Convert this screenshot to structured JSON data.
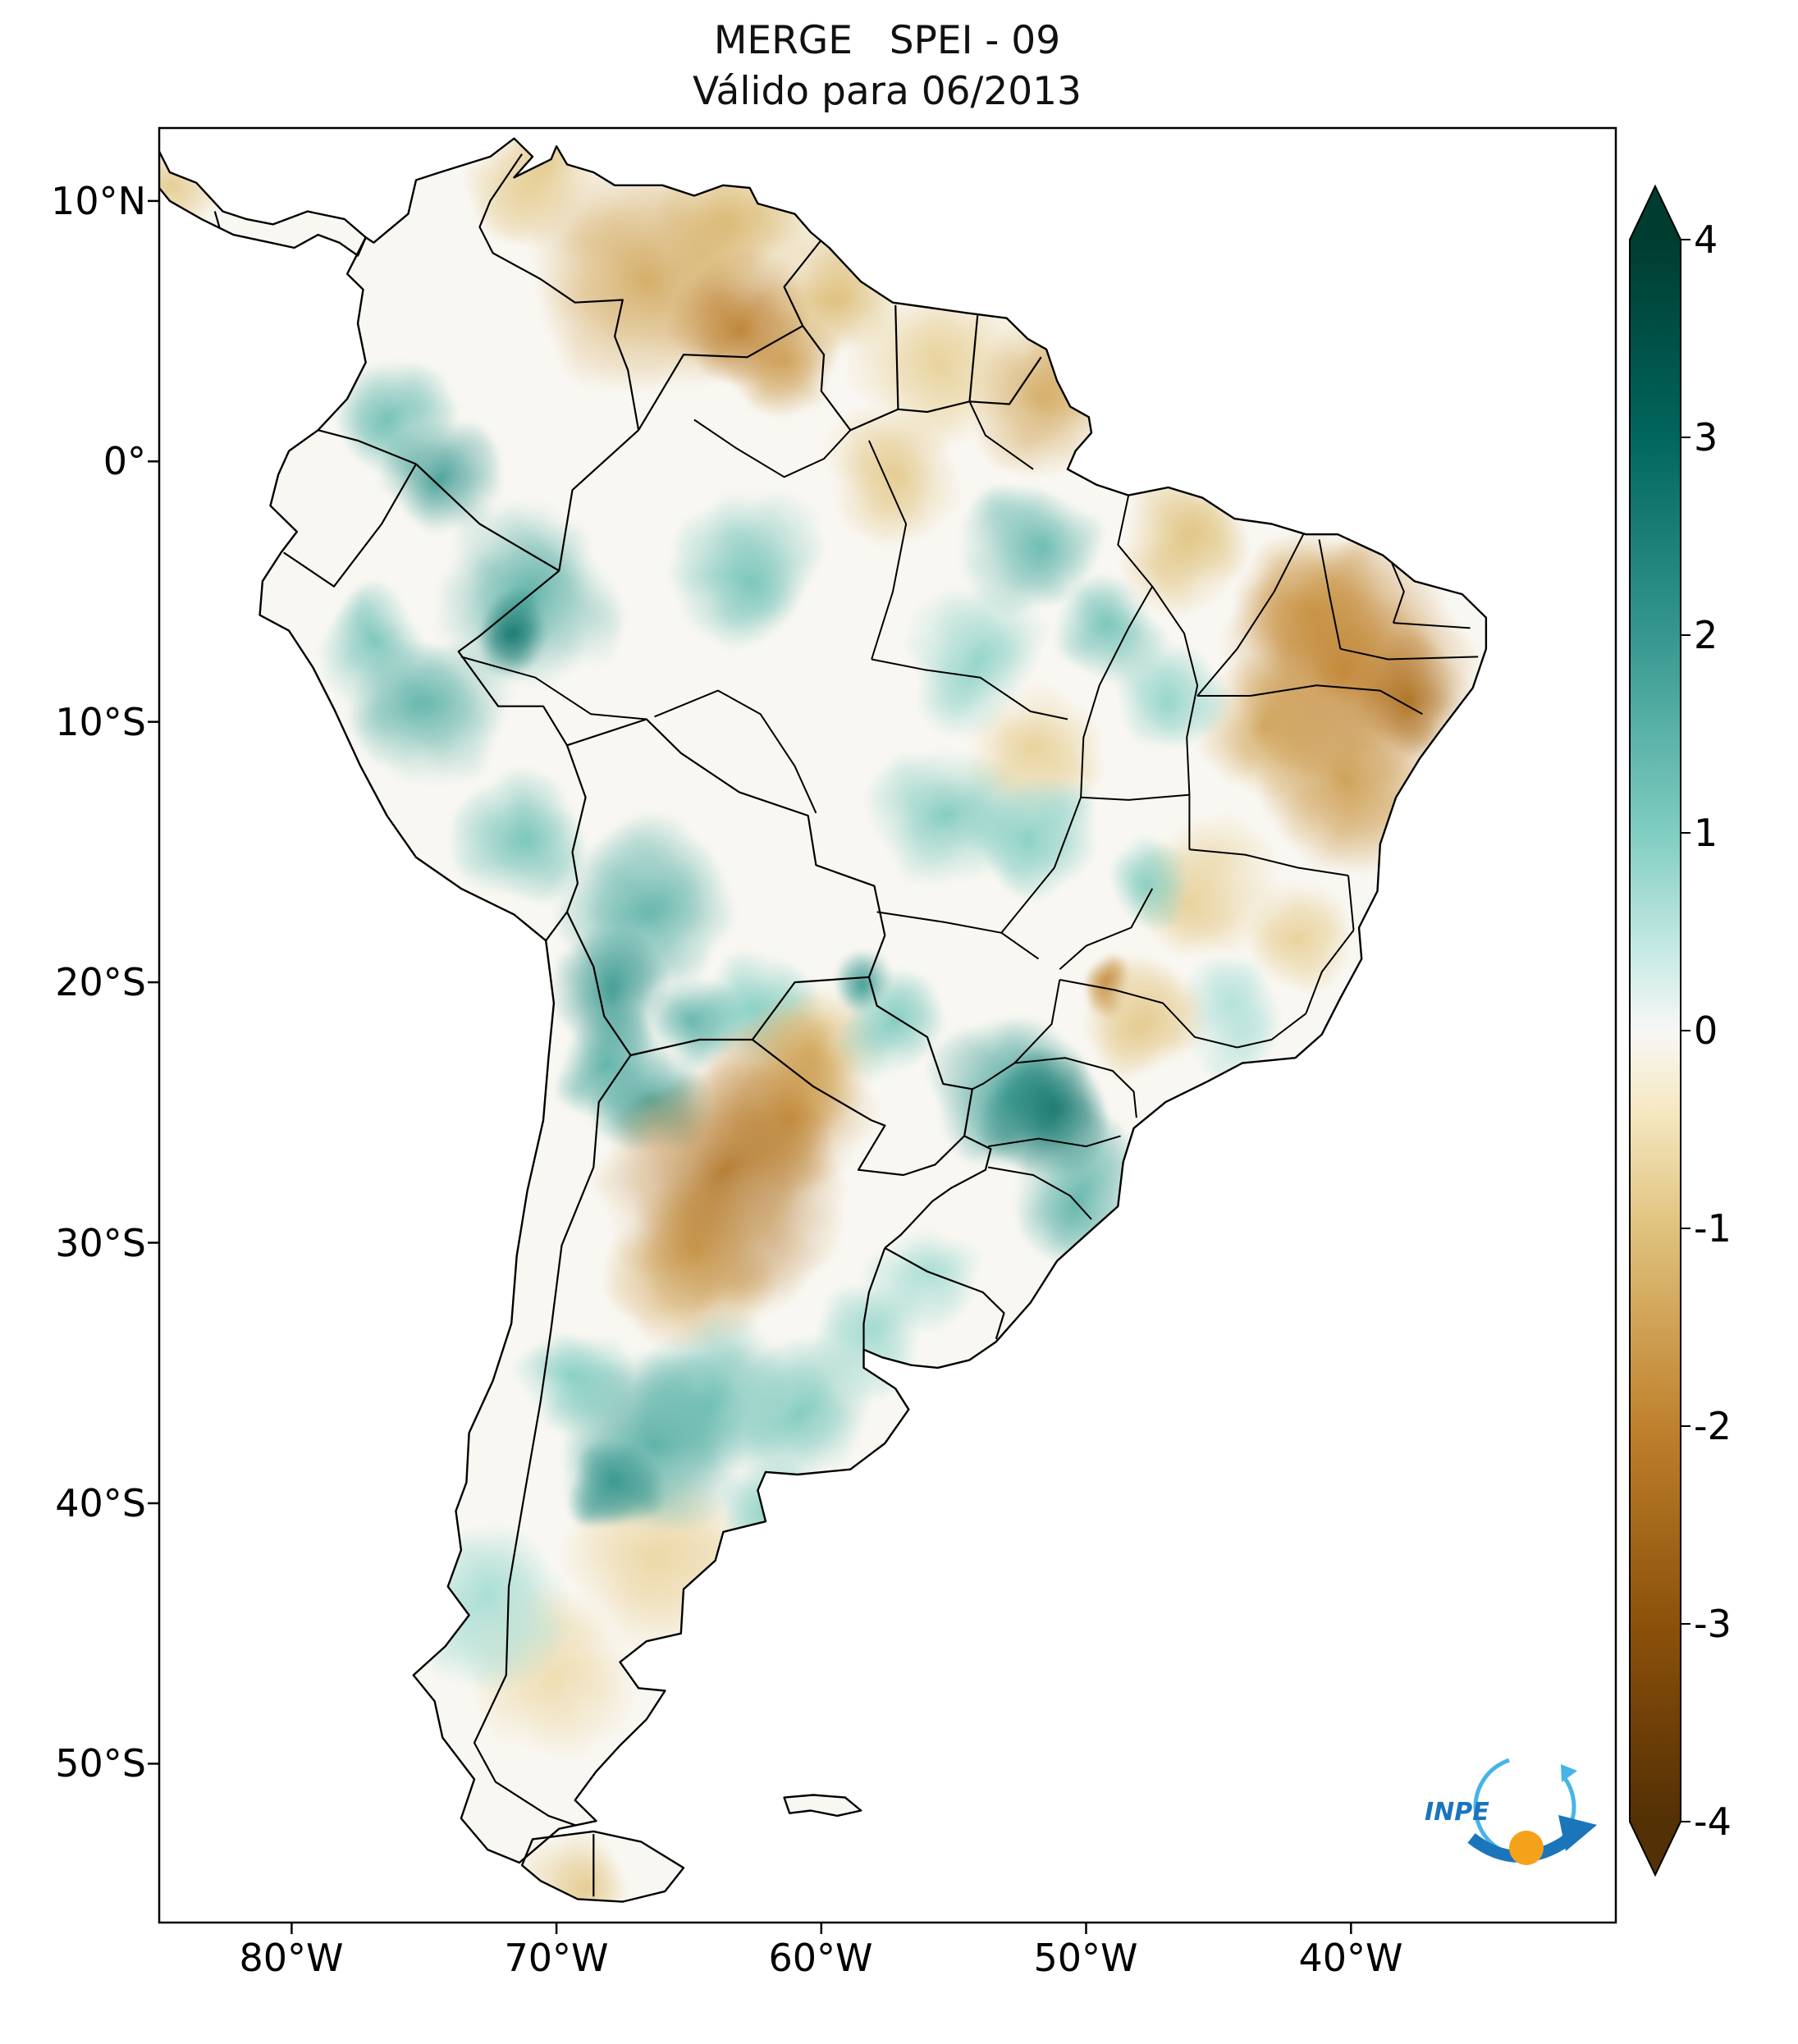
{
  "header": {
    "title_line1": "MERGE   SPEI - 09",
    "title_line2": "Válido para 06/2013"
  },
  "axes": {
    "y_ticks": [
      "10°N",
      "0°",
      "10°S",
      "20°S",
      "30°S",
      "40°S",
      "50°S"
    ],
    "x_ticks": [
      "80°W",
      "70°W",
      "60°W",
      "50°W",
      "40°W"
    ]
  },
  "colorbar": {
    "tick_labels": [
      "4",
      "3",
      "2",
      "1",
      "0",
      "-1",
      "-2",
      "-3",
      "-4"
    ],
    "max": 4,
    "min": -4,
    "colormap_name": "brown-white-teal (BrBG)",
    "stops": [
      [
        -4,
        "#543005"
      ],
      [
        -3,
        "#8c510a"
      ],
      [
        -2,
        "#bf812d"
      ],
      [
        -1,
        "#dfc27d"
      ],
      [
        -0.4,
        "#f6e8c3"
      ],
      [
        0,
        "#f7f7f5"
      ],
      [
        0.4,
        "#c7eae5"
      ],
      [
        1,
        "#80cdc1"
      ],
      [
        2,
        "#35978f"
      ],
      [
        3,
        "#01665e"
      ],
      [
        4,
        "#003c30"
      ]
    ]
  },
  "logo": {
    "text": "INPE",
    "blue": "#1b75bb",
    "light_blue": "#45b5e8",
    "orange": "#f5a21b"
  },
  "chart_data": {
    "type": "heatmap",
    "title": "MERGE   SPEI - 09",
    "subtitle": "Válido para 06/2013",
    "region": "South America",
    "index_range": [
      -4,
      4
    ],
    "colorbar_ticks": [
      4,
      3,
      2,
      1,
      0,
      -1,
      -2,
      -3,
      -4
    ],
    "lon_ticks": [
      "80°W",
      "70°W",
      "60°W",
      "50°W",
      "40°W"
    ],
    "lat_ticks": [
      "10°N",
      "0°",
      "10°S",
      "20°S",
      "30°S",
      "40°S",
      "50°S"
    ],
    "lon_range_est": [
      -85,
      -30
    ],
    "lat_range_est": [
      -56,
      13
    ],
    "anomalies": [
      {
        "lon": -66.5,
        "lat": 7.2,
        "value": -1.4,
        "radius_deg": 3.0
      },
      {
        "lon": -63.5,
        "lat": 9.3,
        "value": -1.1,
        "radius_deg": 1.8
      },
      {
        "lon": -70.8,
        "lat": 10.8,
        "value": -0.9,
        "radius_deg": 1.5
      },
      {
        "lon": -63.0,
        "lat": 5.6,
        "value": -2.1,
        "radius_deg": 1.7
      },
      {
        "lon": -61.3,
        "lat": 3.6,
        "value": -1.6,
        "radius_deg": 1.5
      },
      {
        "lon": -59.6,
        "lat": 6.6,
        "value": -1.1,
        "radius_deg": 1.8
      },
      {
        "lon": -51.5,
        "lat": 2.8,
        "value": -1.4,
        "radius_deg": 1.8
      },
      {
        "lon": -55.6,
        "lat": 3.8,
        "value": -0.8,
        "radius_deg": 2.0
      },
      {
        "lon": -57.5,
        "lat": -0.6,
        "value": -0.9,
        "radius_deg": 1.8
      },
      {
        "lon": -46.5,
        "lat": -3.2,
        "value": -1.0,
        "radius_deg": 1.6
      },
      {
        "lon": -41.5,
        "lat": -5.5,
        "value": -1.5,
        "radius_deg": 2.0
      },
      {
        "lon": -40.0,
        "lat": -7.6,
        "value": -2.0,
        "radius_deg": 3.2
      },
      {
        "lon": -37.6,
        "lat": -8.8,
        "value": -2.4,
        "radius_deg": 1.5
      },
      {
        "lon": -40.2,
        "lat": -12.5,
        "value": -1.6,
        "radius_deg": 2.2
      },
      {
        "lon": -43.2,
        "lat": -10.2,
        "value": -1.4,
        "radius_deg": 1.8
      },
      {
        "lon": -45.6,
        "lat": -16.4,
        "value": -0.8,
        "radius_deg": 1.8
      },
      {
        "lon": -49.4,
        "lat": -20.3,
        "value": -1.9,
        "radius_deg": 0.7
      },
      {
        "lon": -63.5,
        "lat": -27.8,
        "value": -2.3,
        "radius_deg": 3.2
      },
      {
        "lon": -61.3,
        "lat": -24.8,
        "value": -1.8,
        "radius_deg": 2.3
      },
      {
        "lon": -65.0,
        "lat": -30.8,
        "value": -1.5,
        "radius_deg": 2.0
      },
      {
        "lon": -60.3,
        "lat": -22.8,
        "value": -1.1,
        "radius_deg": 1.8
      },
      {
        "lon": -66.0,
        "lat": -42.3,
        "value": -0.7,
        "radius_deg": 2.3
      },
      {
        "lon": -70.3,
        "lat": -46.8,
        "value": -0.6,
        "radius_deg": 2.0
      },
      {
        "lon": -69.3,
        "lat": -54.3,
        "value": -0.9,
        "radius_deg": 1.4
      },
      {
        "lon": -84.0,
        "lat": 10.4,
        "value": -0.9,
        "radius_deg": 1.1
      },
      {
        "lon": -62.0,
        "lat": -43.5,
        "value": -0.6,
        "radius_deg": 1.6
      },
      {
        "lon": -41.8,
        "lat": -18.2,
        "value": -0.8,
        "radius_deg": 1.4
      },
      {
        "lon": -48.0,
        "lat": -21.5,
        "value": -0.9,
        "radius_deg": 1.5
      },
      {
        "lon": -52.0,
        "lat": -11.5,
        "value": -0.8,
        "radius_deg": 1.5
      },
      {
        "lon": -71.6,
        "lat": -6.6,
        "value": 2.7,
        "radius_deg": 1.1
      },
      {
        "lon": -71.0,
        "lat": -5.2,
        "value": 1.6,
        "radius_deg": 2.4
      },
      {
        "lon": -74.2,
        "lat": -0.6,
        "value": 1.9,
        "radius_deg": 1.5
      },
      {
        "lon": -76.0,
        "lat": 1.8,
        "value": 1.3,
        "radius_deg": 1.4
      },
      {
        "lon": -74.8,
        "lat": -9.6,
        "value": 1.5,
        "radius_deg": 1.9
      },
      {
        "lon": -77.0,
        "lat": -7.0,
        "value": 1.2,
        "radius_deg": 1.4
      },
      {
        "lon": -71.2,
        "lat": -14.2,
        "value": 1.2,
        "radius_deg": 1.7
      },
      {
        "lon": -66.8,
        "lat": -17.2,
        "value": 1.5,
        "radius_deg": 2.1
      },
      {
        "lon": -68.0,
        "lat": -20.2,
        "value": 2.0,
        "radius_deg": 1.5
      },
      {
        "lon": -68.0,
        "lat": -22.7,
        "value": 1.6,
        "radius_deg": 1.3
      },
      {
        "lon": -66.5,
        "lat": -24.6,
        "value": 1.8,
        "radius_deg": 1.4
      },
      {
        "lon": -64.6,
        "lat": -21.4,
        "value": 1.5,
        "radius_deg": 1.2
      },
      {
        "lon": -62.5,
        "lat": -21.0,
        "value": 1.0,
        "radius_deg": 1.4
      },
      {
        "lon": -58.6,
        "lat": -19.6,
        "value": 2.0,
        "radius_deg": 0.9
      },
      {
        "lon": -57.2,
        "lat": -21.6,
        "value": 1.1,
        "radius_deg": 1.4
      },
      {
        "lon": -51.7,
        "lat": -25.2,
        "value": 2.7,
        "radius_deg": 1.5
      },
      {
        "lon": -53.0,
        "lat": -24.3,
        "value": 1.8,
        "radius_deg": 1.9
      },
      {
        "lon": -50.2,
        "lat": -27.9,
        "value": 1.5,
        "radius_deg": 1.7
      },
      {
        "lon": -55.2,
        "lat": -13.6,
        "value": 1.1,
        "radius_deg": 1.9
      },
      {
        "lon": -52.2,
        "lat": -14.6,
        "value": 1.0,
        "radius_deg": 1.4
      },
      {
        "lon": -47.6,
        "lat": -16.1,
        "value": 1.0,
        "radius_deg": 1.2
      },
      {
        "lon": -62.8,
        "lat": -4.2,
        "value": 1.2,
        "radius_deg": 1.9
      },
      {
        "lon": -52.3,
        "lat": -3.2,
        "value": 1.4,
        "radius_deg": 1.8
      },
      {
        "lon": -49.2,
        "lat": -6.6,
        "value": 1.2,
        "radius_deg": 1.4
      },
      {
        "lon": -54.2,
        "lat": -7.6,
        "value": 0.9,
        "radius_deg": 1.8
      },
      {
        "lon": -47.0,
        "lat": -9.0,
        "value": 0.9,
        "radius_deg": 1.3
      },
      {
        "lon": -66.2,
        "lat": -37.5,
        "value": 1.6,
        "radius_deg": 2.4
      },
      {
        "lon": -67.6,
        "lat": -39.2,
        "value": 2.1,
        "radius_deg": 1.1
      },
      {
        "lon": -64.2,
        "lat": -35.6,
        "value": 1.2,
        "radius_deg": 1.9
      },
      {
        "lon": -61.9,
        "lat": -40.4,
        "value": 1.0,
        "radius_deg": 1.3
      },
      {
        "lon": -60.8,
        "lat": -36.6,
        "value": 1.1,
        "radius_deg": 1.8
      },
      {
        "lon": -69.2,
        "lat": -35.2,
        "value": 1.0,
        "radius_deg": 1.4
      },
      {
        "lon": -58.2,
        "lat": -33.9,
        "value": 0.8,
        "radius_deg": 1.4
      },
      {
        "lon": -56.2,
        "lat": -31.6,
        "value": 0.7,
        "radius_deg": 1.4
      },
      {
        "lon": -72.5,
        "lat": -44.0,
        "value": 0.7,
        "radius_deg": 2.0
      },
      {
        "lon": -44.6,
        "lat": -21.2,
        "value": 0.6,
        "radius_deg": 1.4
      }
    ]
  }
}
